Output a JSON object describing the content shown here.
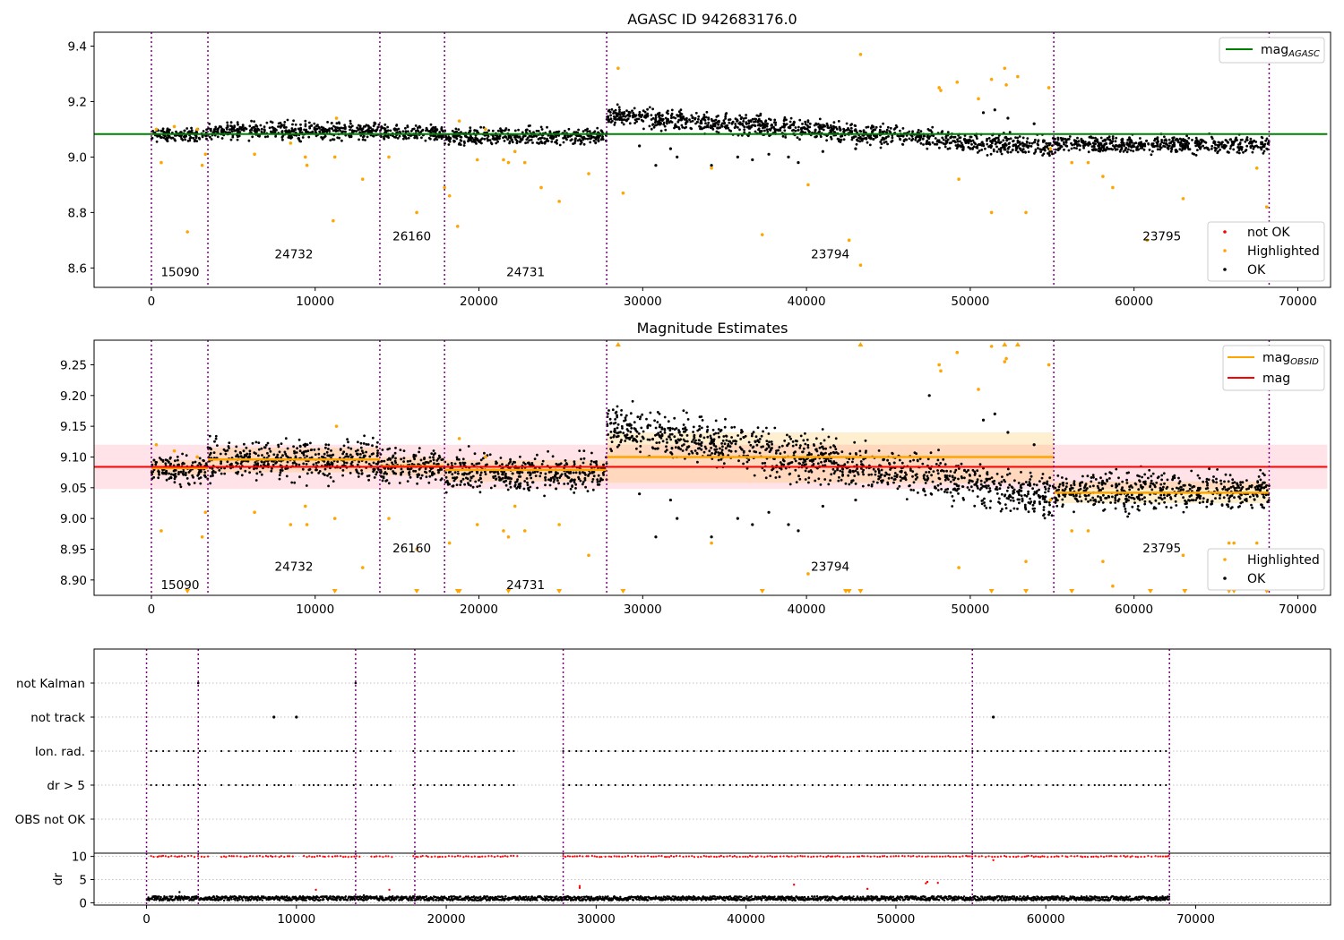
{
  "figure": {
    "x_ticks": [
      0,
      10000,
      20000,
      30000,
      40000,
      50000,
      60000,
      70000
    ],
    "x_range": [
      -3500,
      72000
    ],
    "x_range_bottom": [
      -3500,
      79000
    ],
    "colors": {
      "ok": "#000000",
      "highlighted": "#ffa500",
      "not_ok": "#ff0000",
      "agasc_line": "#008000",
      "mag_line": "#ff0000",
      "obsid_line": "#ffa500",
      "obsid_boundary": "#800080",
      "mag_band": "#ffc0cb",
      "grid": "#b0b0b0"
    },
    "obsid_boundaries": [
      0,
      3450,
      13950,
      17900,
      27800,
      55100,
      68250
    ]
  },
  "chart_data": [
    {
      "id": "agasc",
      "type": "scatter",
      "title": "AGASC ID 942683176.0",
      "xlabel": "",
      "ylabel": "",
      "xlim": [
        -3500,
        72000
      ],
      "ylim": [
        8.53,
        9.45
      ],
      "y_ticks": [
        "8.6",
        "8.8",
        "9.0",
        "9.2",
        "9.4"
      ],
      "grid": false,
      "legend_upper": {
        "placement": "top-right",
        "entries": [
          {
            "label_main": "mag",
            "label_sub": "AGASC",
            "kind": "line",
            "color": "#008000"
          }
        ]
      },
      "legend_lower": {
        "placement": "bottom-right",
        "entries": [
          {
            "label": "not OK",
            "kind": "dot",
            "color": "#ff0000"
          },
          {
            "label": "Highlighted",
            "kind": "dot",
            "color": "#ffa500"
          },
          {
            "label": "OK",
            "kind": "dot",
            "color": "#000000"
          }
        ]
      },
      "hlines": [
        {
          "name": "mag_AGASC",
          "y": 9.083,
          "x": [
            -3500,
            71800
          ],
          "color": "#008000"
        }
      ],
      "obsid_labels": [
        {
          "text": "15090",
          "x": 1750,
          "y": 8.57
        },
        {
          "text": "24732",
          "x": 8700,
          "y": 8.635
        },
        {
          "text": "26160",
          "x": 15900,
          "y": 8.7
        },
        {
          "text": "24731",
          "x": 22850,
          "y": 8.57
        },
        {
          "text": "23794",
          "x": 41450,
          "y": 8.635
        },
        {
          "text": "23795",
          "x": 61700,
          "y": 8.7
        }
      ],
      "segments": [
        {
          "x": [
            0,
            3450
          ],
          "mean": 9.08,
          "spread": 0.022
        },
        {
          "x": [
            3450,
            13950
          ],
          "mean": 9.095,
          "spread": 0.03
        },
        {
          "x": [
            13950,
            17900
          ],
          "mean": 9.085,
          "spread": 0.028
        },
        {
          "x": [
            17900,
            27800
          ],
          "mean": 9.074,
          "spread": 0.03
        },
        {
          "x": [
            27800,
            55100
          ],
          "mean_start": 9.15,
          "mean_end": 9.035,
          "spread": 0.035
        },
        {
          "x": [
            55100,
            68250
          ],
          "mean": 9.045,
          "spread": 0.03
        }
      ],
      "highlighted_points": [
        [
          300,
          9.1
        ],
        [
          600,
          8.98
        ],
        [
          1400,
          9.11
        ],
        [
          2200,
          8.73
        ],
        [
          2800,
          9.1
        ],
        [
          3100,
          8.97
        ],
        [
          3300,
          9.01
        ],
        [
          6300,
          9.01
        ],
        [
          8500,
          9.05
        ],
        [
          9400,
          9.0
        ],
        [
          9500,
          8.97
        ],
        [
          11100,
          8.77
        ],
        [
          11200,
          9.0
        ],
        [
          11300,
          9.14
        ],
        [
          12900,
          8.92
        ],
        [
          14500,
          9.0
        ],
        [
          16200,
          8.8
        ],
        [
          17900,
          8.89
        ],
        [
          18200,
          8.86
        ],
        [
          18700,
          8.75
        ],
        [
          18800,
          9.13
        ],
        [
          19900,
          8.99
        ],
        [
          20400,
          9.1
        ],
        [
          21500,
          8.99
        ],
        [
          21800,
          8.98
        ],
        [
          22200,
          9.02
        ],
        [
          22800,
          8.98
        ],
        [
          23800,
          8.89
        ],
        [
          24900,
          8.84
        ],
        [
          26700,
          8.94
        ],
        [
          28500,
          9.32
        ],
        [
          28800,
          8.87
        ],
        [
          34200,
          8.96
        ],
        [
          37300,
          8.72
        ],
        [
          40100,
          8.9
        ],
        [
          42600,
          8.7
        ],
        [
          43300,
          8.61
        ],
        [
          43300,
          9.37
        ],
        [
          48100,
          9.25
        ],
        [
          48200,
          9.24
        ],
        [
          49200,
          9.27
        ],
        [
          49300,
          8.92
        ],
        [
          50500,
          9.21
        ],
        [
          51300,
          8.8
        ],
        [
          51300,
          9.28
        ],
        [
          52100,
          9.32
        ],
        [
          52200,
          9.26
        ],
        [
          52900,
          9.29
        ],
        [
          53400,
          8.8
        ],
        [
          54800,
          9.25
        ],
        [
          54900,
          9.03
        ],
        [
          56200,
          8.98
        ],
        [
          57200,
          8.98
        ],
        [
          58100,
          8.93
        ],
        [
          58700,
          8.89
        ],
        [
          60800,
          8.7
        ],
        [
          63000,
          8.85
        ],
        [
          65800,
          8.75
        ],
        [
          66100,
          8.75
        ],
        [
          67500,
          8.96
        ],
        [
          68100,
          8.82
        ]
      ],
      "outlier_ok_points": [
        [
          29800,
          9.04
        ],
        [
          30800,
          8.97
        ],
        [
          31700,
          9.03
        ],
        [
          32100,
          9.0
        ],
        [
          34200,
          8.97
        ],
        [
          35800,
          9.0
        ],
        [
          36700,
          8.99
        ],
        [
          37700,
          9.01
        ],
        [
          38900,
          9.0
        ],
        [
          39500,
          8.98
        ],
        [
          41000,
          9.02
        ],
        [
          43000,
          9.03
        ],
        [
          48800,
          9.07
        ],
        [
          50800,
          9.16
        ],
        [
          51500,
          9.17
        ],
        [
          52300,
          9.14
        ],
        [
          53900,
          9.12
        ]
      ]
    },
    {
      "id": "mag_estimates",
      "type": "scatter",
      "title": "Magnitude Estimates",
      "xlabel": "",
      "ylabel": "",
      "xlim": [
        -3500,
        72000
      ],
      "ylim": [
        8.875,
        9.29
      ],
      "y_ticks": [
        "8.90",
        "8.95",
        "9.00",
        "9.05",
        "9.10",
        "9.15",
        "9.20",
        "9.25"
      ],
      "grid": false,
      "legend_upper": {
        "placement": "top-right",
        "entries": [
          {
            "label_main": "mag",
            "label_sub": "OBSID",
            "kind": "line",
            "color": "#ffa500"
          },
          {
            "label_main": "mag",
            "label_sub": "",
            "kind": "line",
            "color": "#ff0000"
          }
        ]
      },
      "legend_lower": {
        "placement": "bottom-right",
        "entries": [
          {
            "label": "Highlighted",
            "kind": "dot",
            "color": "#ffa500"
          },
          {
            "label": "OK",
            "kind": "dot",
            "color": "#000000"
          }
        ]
      },
      "mag": {
        "value": 9.084,
        "band": [
          9.048,
          9.12
        ],
        "x": [
          -3500,
          71800
        ]
      },
      "obsid_mags": [
        {
          "x": [
            0,
            3450
          ],
          "mag": 9.082,
          "band": [
            9.07,
            9.095
          ]
        },
        {
          "x": [
            3450,
            13950
          ],
          "mag": 9.096,
          "band": [
            9.075,
            9.115
          ]
        },
        {
          "x": [
            13950,
            17900
          ],
          "mag": 9.085,
          "band": [
            9.07,
            9.1
          ]
        },
        {
          "x": [
            17900,
            27800
          ],
          "mag": 9.079,
          "band": [
            9.06,
            9.095
          ]
        },
        {
          "x": [
            27800,
            55100
          ],
          "mag": 9.1,
          "band": [
            9.058,
            9.14
          ]
        },
        {
          "x": [
            55100,
            68250
          ],
          "mag": 9.042,
          "band": [
            9.025,
            9.06
          ]
        }
      ],
      "obsid_labels": [
        {
          "text": "15090",
          "x": 1750,
          "y": 8.885
        },
        {
          "text": "24732",
          "x": 8700,
          "y": 8.915
        },
        {
          "text": "26160",
          "x": 15900,
          "y": 8.945
        },
        {
          "text": "24731",
          "x": 22850,
          "y": 8.885
        },
        {
          "text": "23794",
          "x": 41450,
          "y": 8.915
        },
        {
          "text": "23795",
          "x": 61700,
          "y": 8.945
        }
      ],
      "segments": [
        {
          "x": [
            0,
            3450
          ],
          "mean": 9.08,
          "spread": 0.022
        },
        {
          "x": [
            3450,
            13950
          ],
          "mean": 9.095,
          "spread": 0.03
        },
        {
          "x": [
            13950,
            17900
          ],
          "mean": 9.085,
          "spread": 0.028
        },
        {
          "x": [
            17900,
            27800
          ],
          "mean": 9.074,
          "spread": 0.03
        },
        {
          "x": [
            27800,
            55100
          ],
          "mean_start": 9.15,
          "mean_end": 9.035,
          "spread": 0.035
        },
        {
          "x": [
            55100,
            68250
          ],
          "mean": 9.045,
          "spread": 0.03
        }
      ],
      "highlighted_points": [
        [
          300,
          9.12
        ],
        [
          600,
          8.98
        ],
        [
          1400,
          9.11
        ],
        [
          2800,
          9.1
        ],
        [
          3100,
          8.97
        ],
        [
          3300,
          9.01
        ],
        [
          6300,
          9.01
        ],
        [
          8500,
          8.99
        ],
        [
          9400,
          9.02
        ],
        [
          9500,
          8.99
        ],
        [
          11200,
          9.0
        ],
        [
          11300,
          9.15
        ],
        [
          12900,
          8.92
        ],
        [
          14500,
          9.0
        ],
        [
          16200,
          8.95
        ],
        [
          18200,
          8.96
        ],
        [
          18800,
          9.13
        ],
        [
          19900,
          8.99
        ],
        [
          20400,
          9.1
        ],
        [
          21500,
          8.98
        ],
        [
          21800,
          8.97
        ],
        [
          22200,
          9.02
        ],
        [
          22800,
          8.98
        ],
        [
          24900,
          8.99
        ],
        [
          26700,
          8.94
        ],
        [
          34200,
          8.96
        ],
        [
          40100,
          8.91
        ],
        [
          48100,
          9.25
        ],
        [
          48200,
          9.24
        ],
        [
          49200,
          9.27
        ],
        [
          49300,
          8.92
        ],
        [
          50500,
          9.21
        ],
        [
          51300,
          9.28
        ],
        [
          52200,
          9.26
        ],
        [
          52100,
          9.255
        ],
        [
          53400,
          8.93
        ],
        [
          54800,
          9.25
        ],
        [
          54900,
          9.03
        ],
        [
          56200,
          8.98
        ],
        [
          57200,
          8.98
        ],
        [
          58100,
          8.93
        ],
        [
          58700,
          8.89
        ],
        [
          63000,
          8.94
        ],
        [
          65800,
          8.96
        ],
        [
          66100,
          8.96
        ],
        [
          67500,
          8.96
        ]
      ],
      "clipped_low_points": [
        2200,
        11200,
        16200,
        18700,
        18800,
        21800,
        24900,
        28800,
        37300,
        42400,
        42600,
        43300,
        51300,
        53400,
        56200,
        61000,
        63100,
        65800,
        66100,
        68100
      ],
      "clipped_high_points": [
        28500,
        43300,
        52100,
        52900
      ],
      "outlier_ok_points": [
        [
          29800,
          9.04
        ],
        [
          30800,
          8.97
        ],
        [
          31700,
          9.03
        ],
        [
          32100,
          9.0
        ],
        [
          34200,
          8.97
        ],
        [
          35800,
          9.0
        ],
        [
          36700,
          8.99
        ],
        [
          37700,
          9.01
        ],
        [
          38900,
          8.99
        ],
        [
          39500,
          8.98
        ],
        [
          41000,
          9.02
        ],
        [
          43000,
          9.03
        ],
        [
          47500,
          9.2
        ],
        [
          50800,
          9.16
        ],
        [
          51500,
          9.17
        ],
        [
          52300,
          9.14
        ],
        [
          53900,
          9.12
        ]
      ]
    },
    {
      "id": "flags",
      "type": "scatter",
      "title": "",
      "xlabel": "",
      "ylabel": "",
      "xlim": [
        -3500,
        79000
      ],
      "categories": [
        "not Kalman",
        "not track",
        "Ion. rad.",
        "dr > 5",
        "OBS not OK"
      ],
      "grid": true,
      "not_kalman_points": [
        3450,
        13950
      ],
      "not_track_points": [
        8500,
        10000,
        56500
      ],
      "ion_rad_ranges": [
        [
          300,
          4200
        ],
        [
          5000,
          9800
        ],
        [
          10500,
          14300
        ],
        [
          15000,
          16500
        ],
        [
          17800,
          24800
        ],
        [
          27800,
          68250
        ]
      ]
    },
    {
      "id": "dr",
      "type": "scatter",
      "title": "",
      "xlabel": "",
      "ylabel": "dr",
      "xlim": [
        -3500,
        79000
      ],
      "ylim": [
        -0.5,
        10.7
      ],
      "y_ticks": [
        "0",
        "5",
        "10"
      ],
      "grid": true,
      "red_band_value": 10,
      "red_band_ranges": [
        [
          300,
          4200
        ],
        [
          5000,
          9800
        ],
        [
          10500,
          14300
        ],
        [
          15000,
          16500
        ],
        [
          17800,
          24800
        ],
        [
          27800,
          68250
        ]
      ],
      "red_scatter_points": [
        [
          11300,
          2.8
        ],
        [
          16200,
          2.8
        ],
        [
          28900,
          3.2
        ],
        [
          28900,
          3.6
        ],
        [
          43200,
          3.9
        ],
        [
          48100,
          3.0
        ],
        [
          52000,
          4.2
        ],
        [
          52100,
          4.5
        ],
        [
          52800,
          4.3
        ],
        [
          56500,
          9.2
        ]
      ],
      "black_scatter_points": [
        [
          2200,
          2.3
        ],
        [
          14500,
          1.6
        ]
      ],
      "baseline": 0.5
    }
  ]
}
